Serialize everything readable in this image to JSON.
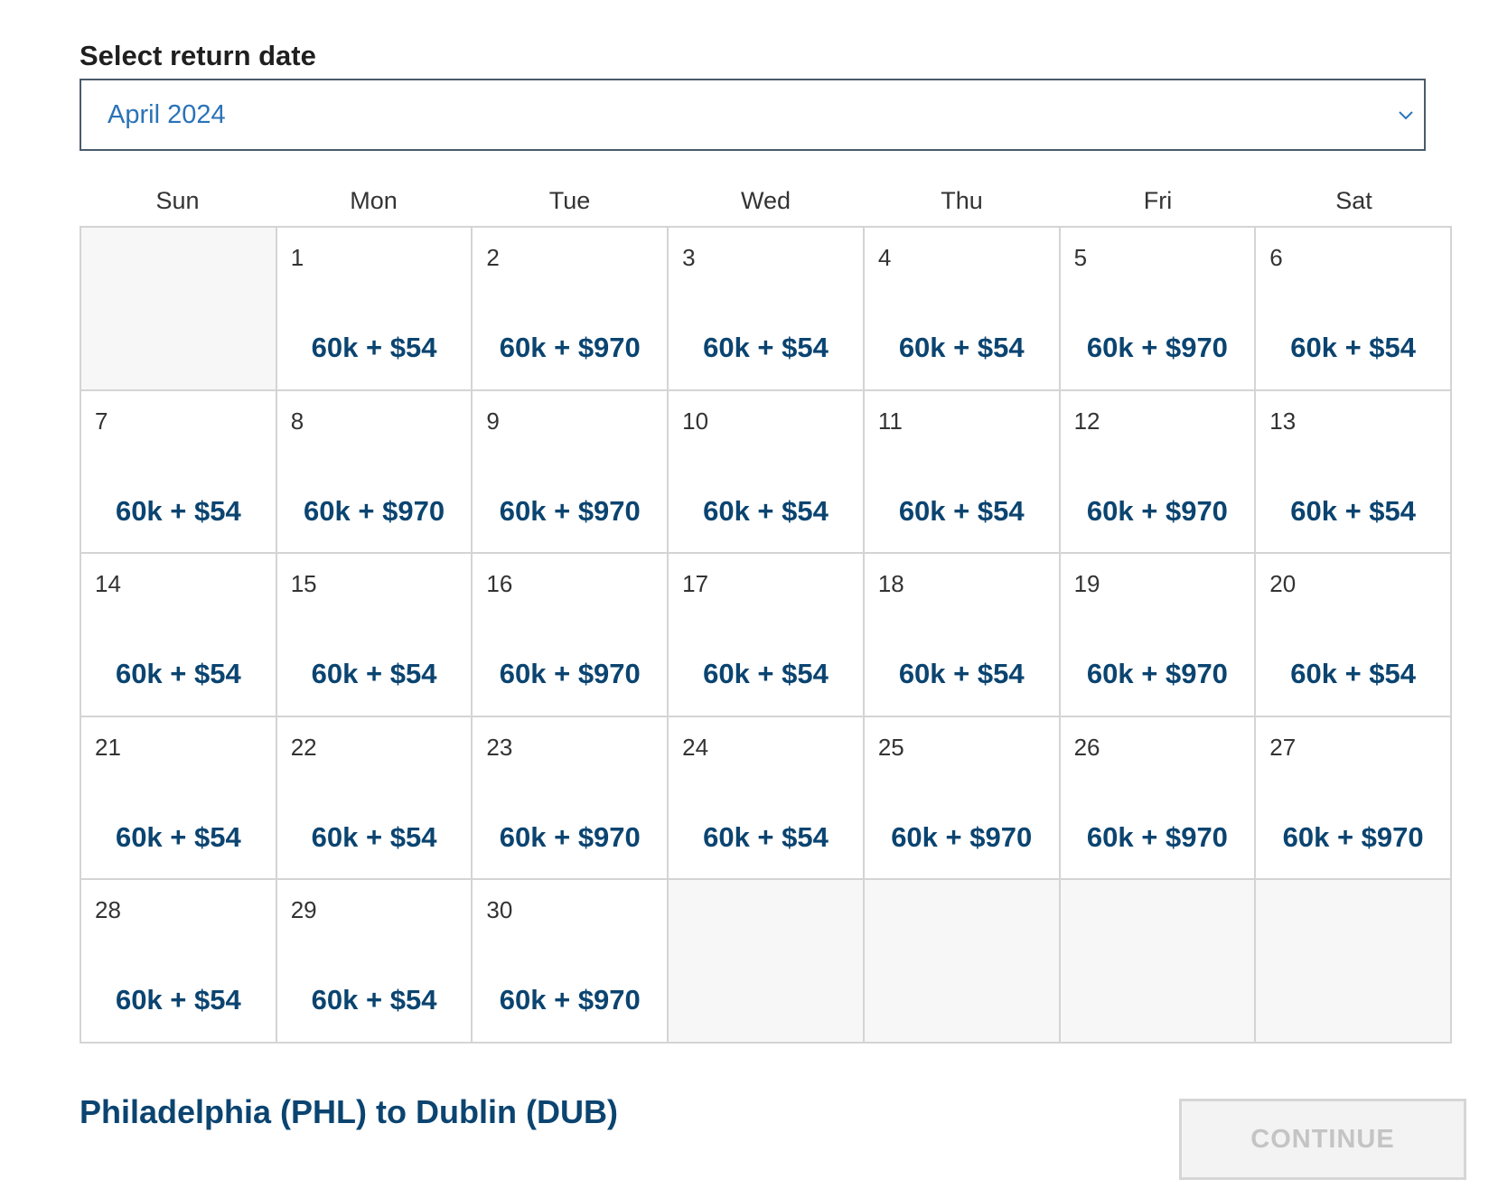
{
  "section_label": "Select return date",
  "month_select": {
    "value": "April 2024",
    "icon": "chevron-down-icon"
  },
  "weekdays": [
    "Sun",
    "Mon",
    "Tue",
    "Wed",
    "Thu",
    "Fri",
    "Sat"
  ],
  "calendar": {
    "leading_empty_days": 1,
    "trailing_empty_days": 4,
    "days": [
      {
        "day": "1",
        "price": "60k + $54"
      },
      {
        "day": "2",
        "price": "60k + $970"
      },
      {
        "day": "3",
        "price": "60k + $54"
      },
      {
        "day": "4",
        "price": "60k + $54"
      },
      {
        "day": "5",
        "price": "60k + $970"
      },
      {
        "day": "6",
        "price": "60k + $54"
      },
      {
        "day": "7",
        "price": "60k + $54"
      },
      {
        "day": "8",
        "price": "60k + $970"
      },
      {
        "day": "9",
        "price": "60k + $970"
      },
      {
        "day": "10",
        "price": "60k + $54"
      },
      {
        "day": "11",
        "price": "60k + $54"
      },
      {
        "day": "12",
        "price": "60k + $970"
      },
      {
        "day": "13",
        "price": "60k + $54"
      },
      {
        "day": "14",
        "price": "60k + $54"
      },
      {
        "day": "15",
        "price": "60k + $54"
      },
      {
        "day": "16",
        "price": "60k + $970"
      },
      {
        "day": "17",
        "price": "60k + $54"
      },
      {
        "day": "18",
        "price": "60k + $54"
      },
      {
        "day": "19",
        "price": "60k + $970"
      },
      {
        "day": "20",
        "price": "60k + $54"
      },
      {
        "day": "21",
        "price": "60k + $54"
      },
      {
        "day": "22",
        "price": "60k + $54"
      },
      {
        "day": "23",
        "price": "60k + $970"
      },
      {
        "day": "24",
        "price": "60k + $54"
      },
      {
        "day": "25",
        "price": "60k + $970"
      },
      {
        "day": "26",
        "price": "60k + $970"
      },
      {
        "day": "27",
        "price": "60k + $970"
      },
      {
        "day": "28",
        "price": "60k + $54"
      },
      {
        "day": "29",
        "price": "60k + $54"
      },
      {
        "day": "30",
        "price": "60k + $970"
      }
    ]
  },
  "route_title": "Philadelphia (PHL) to Dublin (DUB)",
  "continue_button": {
    "label": "CONTINUE",
    "disabled": true
  },
  "colors": {
    "price_text": "#0b4470",
    "select_value": "#2a73b8",
    "empty_cell_bg": "#f7f7f7",
    "disabled_button_text": "#c4c4c4"
  }
}
